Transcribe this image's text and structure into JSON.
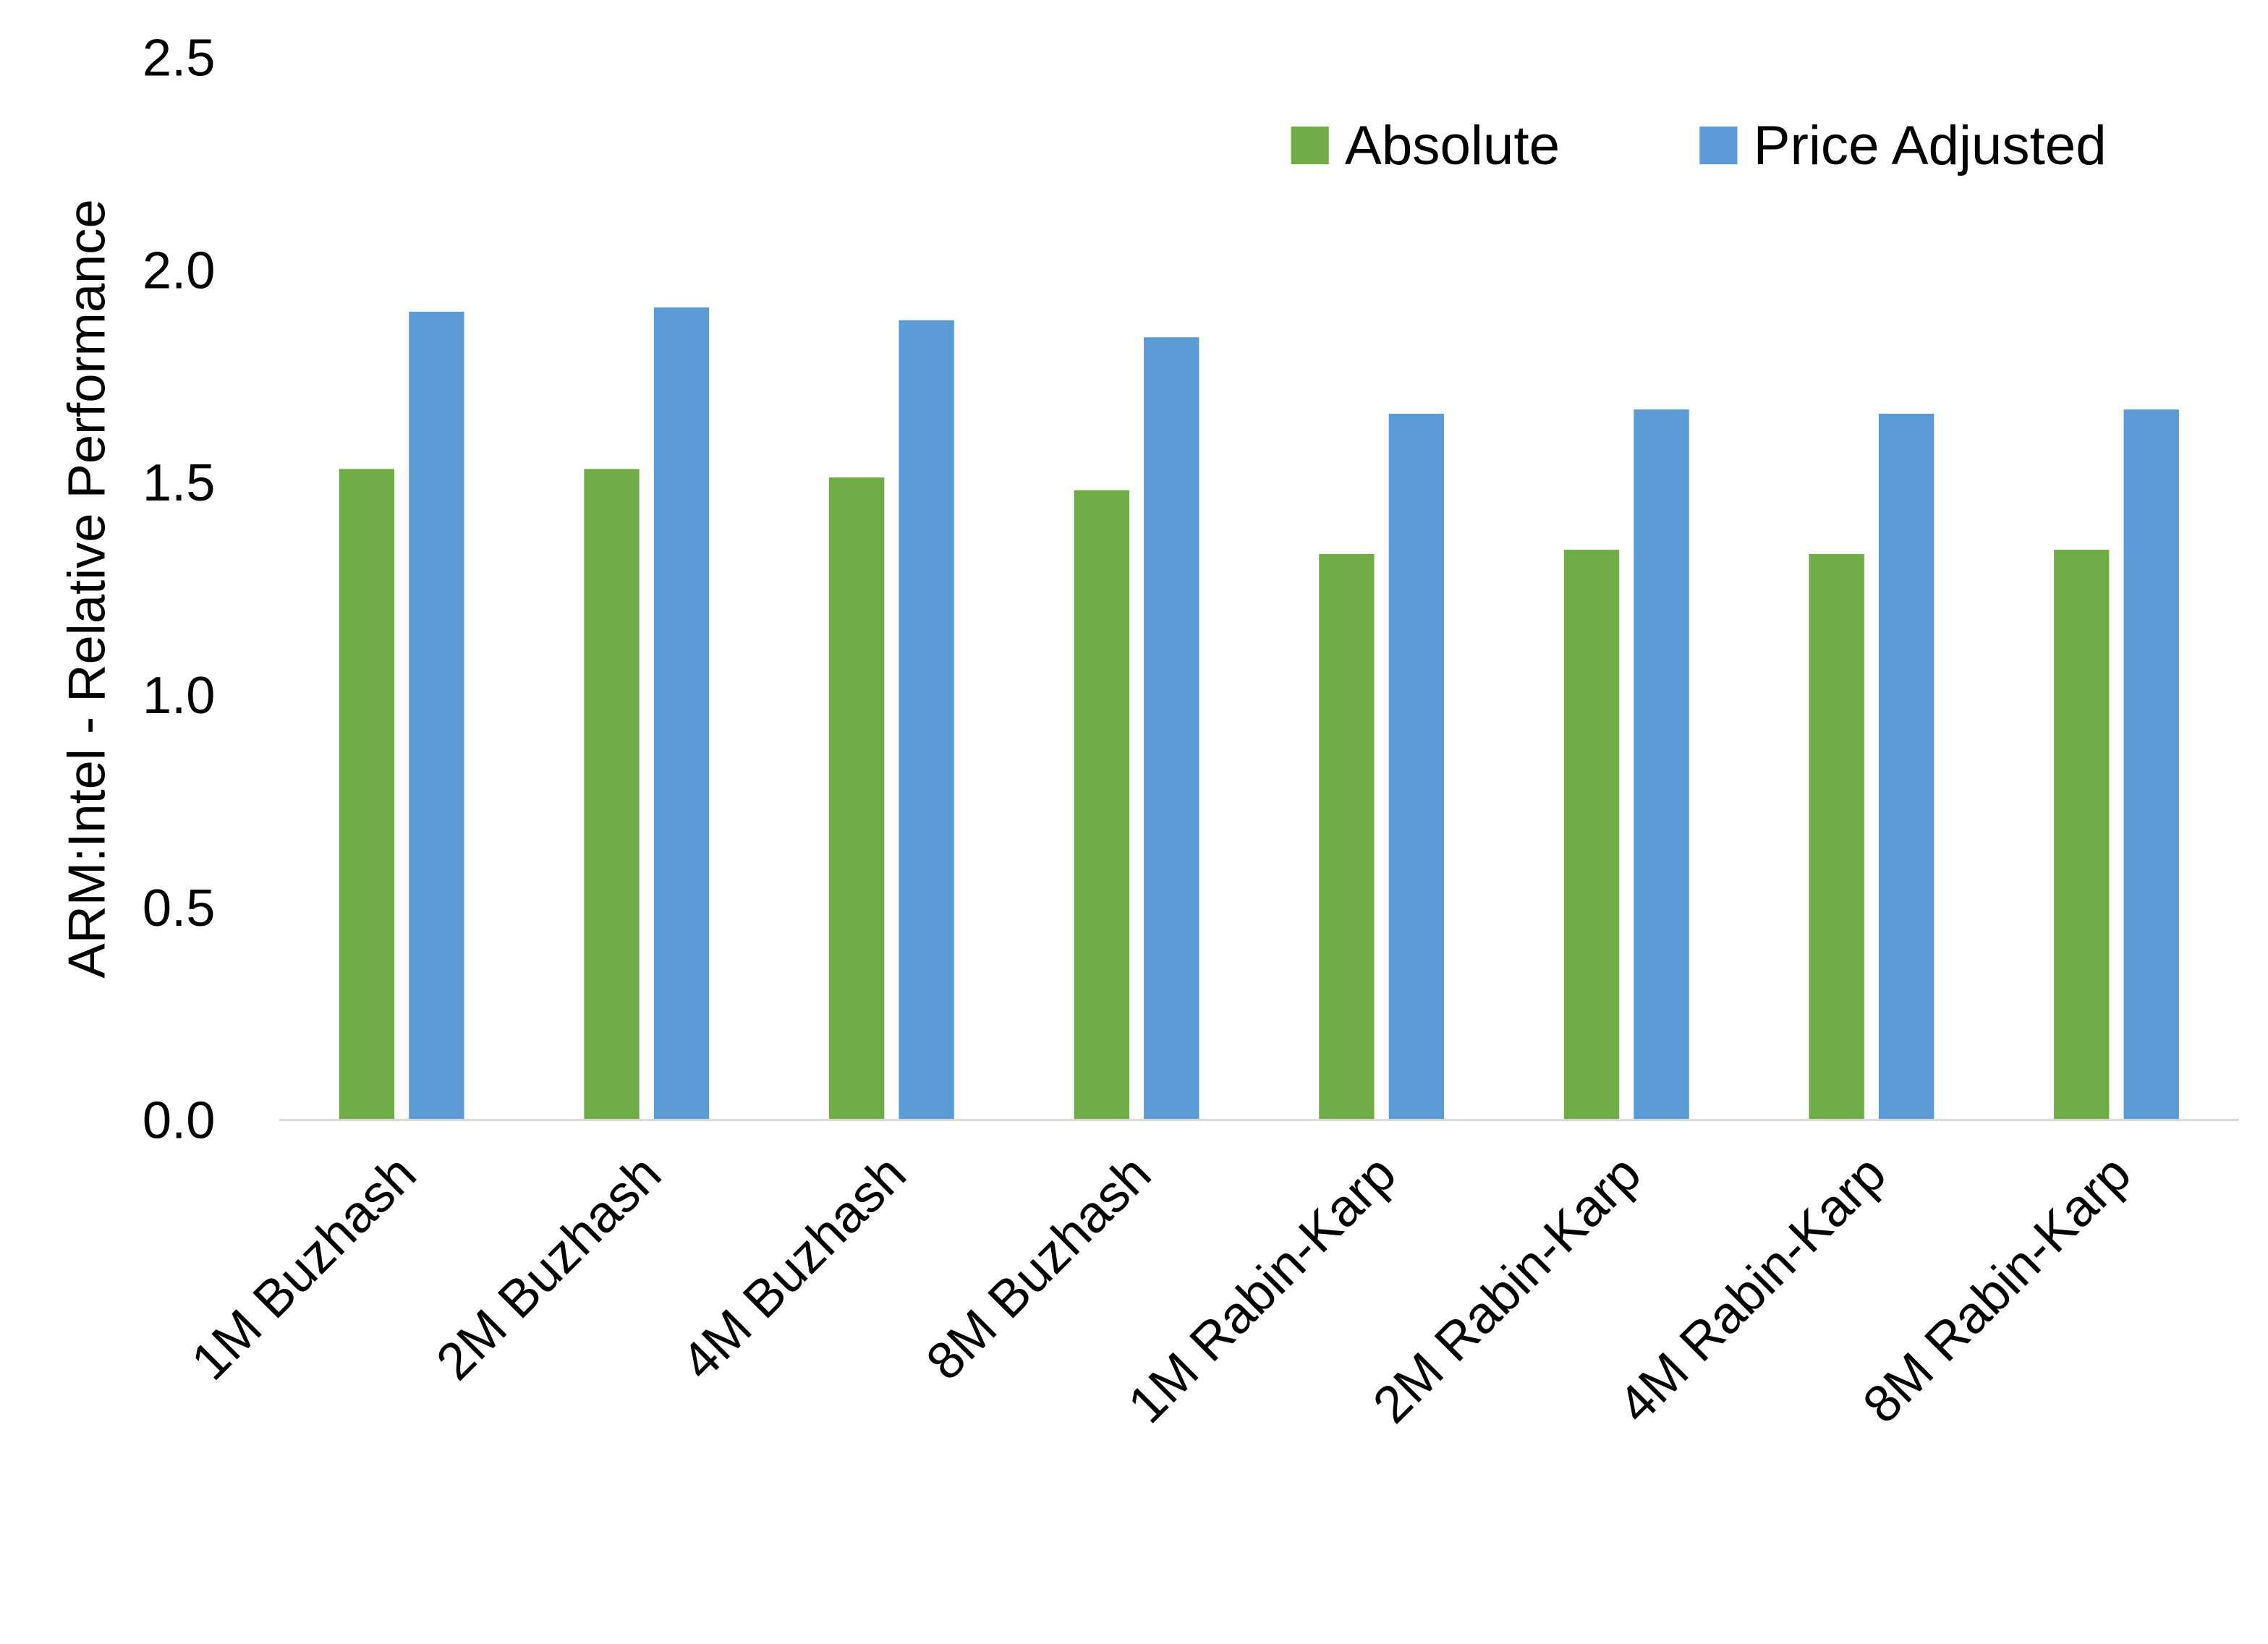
{
  "chart_data": {
    "type": "bar",
    "title": "",
    "xlabel": "",
    "ylabel": "ARM:Intel - Relative Performance",
    "ylim": [
      0,
      2.5
    ],
    "yticks": [
      "0.0",
      "0.5",
      "1.0",
      "1.5",
      "2.0",
      "2.5"
    ],
    "grid": false,
    "legend_position": "top-right",
    "categories": [
      "1M Buzhash",
      "2M Buzhash",
      "4M Buzhash",
      "8M Buzhash",
      "1M Rabin-Karp",
      "2M Rabin-Karp",
      "4M Rabin-Karp",
      "8M Rabin-Karp"
    ],
    "series": [
      {
        "name": "Absolute",
        "color": "#70AD47",
        "values": [
          1.53,
          1.53,
          1.51,
          1.48,
          1.33,
          1.34,
          1.33,
          1.34
        ]
      },
      {
        "name": "Price Adjusted",
        "color": "#5B9BD5",
        "values": [
          1.9,
          1.91,
          1.88,
          1.84,
          1.66,
          1.67,
          1.66,
          1.67
        ]
      }
    ]
  }
}
